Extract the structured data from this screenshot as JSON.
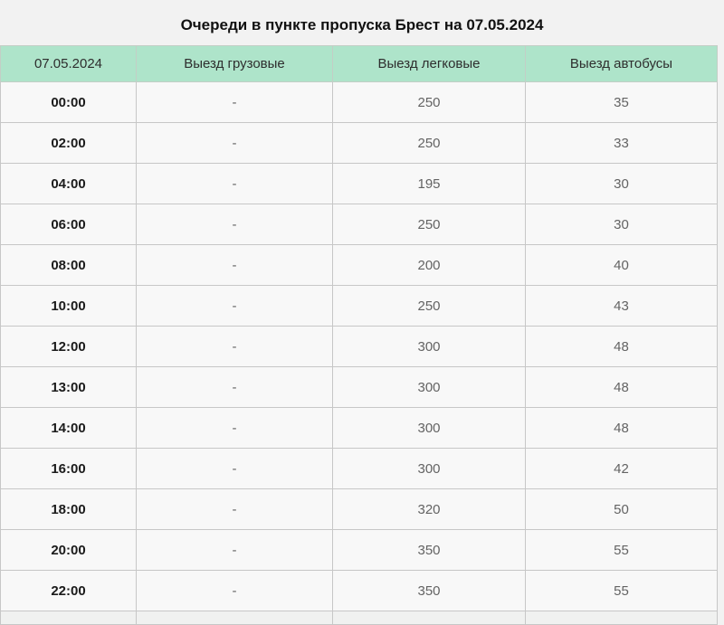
{
  "title": "Очереди в пункте пропуска Брест на 07.05.2024",
  "table": {
    "headers": [
      "07.05.2024",
      "Выезд грузовые",
      "Выезд легковые",
      "Выезд автобусы"
    ],
    "rows": [
      {
        "time": "00:00",
        "trucks": "-",
        "cars": "250",
        "buses": "35"
      },
      {
        "time": "02:00",
        "trucks": "-",
        "cars": "250",
        "buses": "33"
      },
      {
        "time": "04:00",
        "trucks": "-",
        "cars": "195",
        "buses": "30"
      },
      {
        "time": "06:00",
        "trucks": "-",
        "cars": "250",
        "buses": "30"
      },
      {
        "time": "08:00",
        "trucks": "-",
        "cars": "200",
        "buses": "40"
      },
      {
        "time": "10:00",
        "trucks": "-",
        "cars": "250",
        "buses": "43"
      },
      {
        "time": "12:00",
        "trucks": "-",
        "cars": "300",
        "buses": "48"
      },
      {
        "time": "13:00",
        "trucks": "-",
        "cars": "300",
        "buses": "48"
      },
      {
        "time": "14:00",
        "trucks": "-",
        "cars": "300",
        "buses": "48"
      },
      {
        "time": "16:00",
        "trucks": "-",
        "cars": "300",
        "buses": "42"
      },
      {
        "time": "18:00",
        "trucks": "-",
        "cars": "320",
        "buses": "50"
      },
      {
        "time": "20:00",
        "trucks": "-",
        "cars": "350",
        "buses": "55"
      },
      {
        "time": "22:00",
        "trucks": "-",
        "cars": "350",
        "buses": "55"
      }
    ]
  },
  "colors": {
    "header_bg": "#aee4ca",
    "page_bg": "#f2f2f2",
    "row_bg": "#f8f8f8",
    "border": "#c7c7c7",
    "time_text": "#1b1b1b",
    "value_text": "#636363"
  }
}
